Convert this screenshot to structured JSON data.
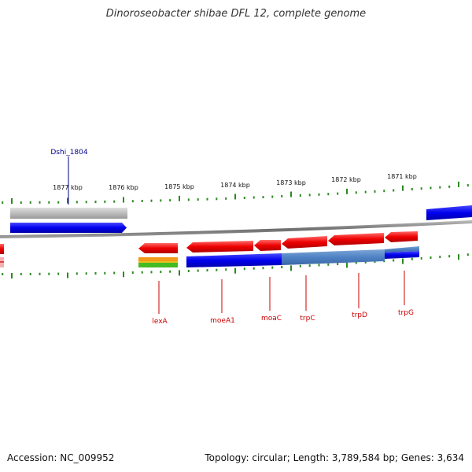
{
  "title": "Dinoroseobacter shibae DFL 12, complete genome",
  "footer": {
    "accession": "Accession: NC_009952",
    "stats": "Topology: circular; Length: 3,789,584 bp; Genes: 3,634"
  },
  "colors": {
    "backbone": "#7a7a7a",
    "ticks": "#2a8a1e",
    "forward_gene": "#0000ee",
    "reverse_gene": "#ee0000",
    "operon_band": "#4f82c4",
    "pseudo_gene": "#bbbbbb",
    "top_label": "#00008b",
    "bottom_label": "#cc0000"
  },
  "scale_labels": [
    {
      "text": "1877 kbp"
    },
    {
      "text": "1876 kbp"
    },
    {
      "text": "1875 kbp"
    },
    {
      "text": "1874 kbp"
    },
    {
      "text": "1873 kbp"
    },
    {
      "text": "1872 kbp"
    },
    {
      "text": "1871 kbp"
    }
  ],
  "top_gene_labels": [
    {
      "text": "Dshi_1804"
    }
  ],
  "bottom_gene_labels": [
    {
      "text": "lexA"
    },
    {
      "text": "moeA1"
    },
    {
      "text": "moaC"
    },
    {
      "text": "trpC"
    },
    {
      "text": "trpD"
    },
    {
      "text": "trpG"
    }
  ]
}
